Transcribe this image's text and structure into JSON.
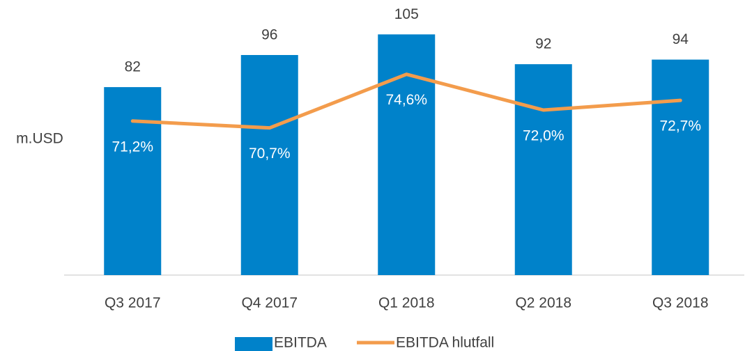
{
  "chart_data": {
    "type": "bar",
    "ylabel": "m.USD",
    "categories": [
      "Q3 2017",
      "Q4 2017",
      "Q1 2018",
      "Q2 2018",
      "Q3 2018"
    ],
    "series": [
      {
        "name": "EBITDA",
        "type": "bar",
        "color": "#0082ca",
        "values": [
          82,
          96,
          105,
          92,
          94
        ]
      },
      {
        "name": "EBITDA hlutfall",
        "type": "line",
        "axis": "y2",
        "color": "#f39c4c",
        "values": [
          71.2,
          70.7,
          74.6,
          72.0,
          72.7
        ],
        "value_labels": [
          "71,2%",
          "70,7%",
          "74,6%",
          "72,0%",
          "72,7%"
        ]
      }
    ],
    "ylim": [
      0,
      120
    ],
    "y2lim": [
      60,
      80
    ],
    "legend": "bottom"
  }
}
